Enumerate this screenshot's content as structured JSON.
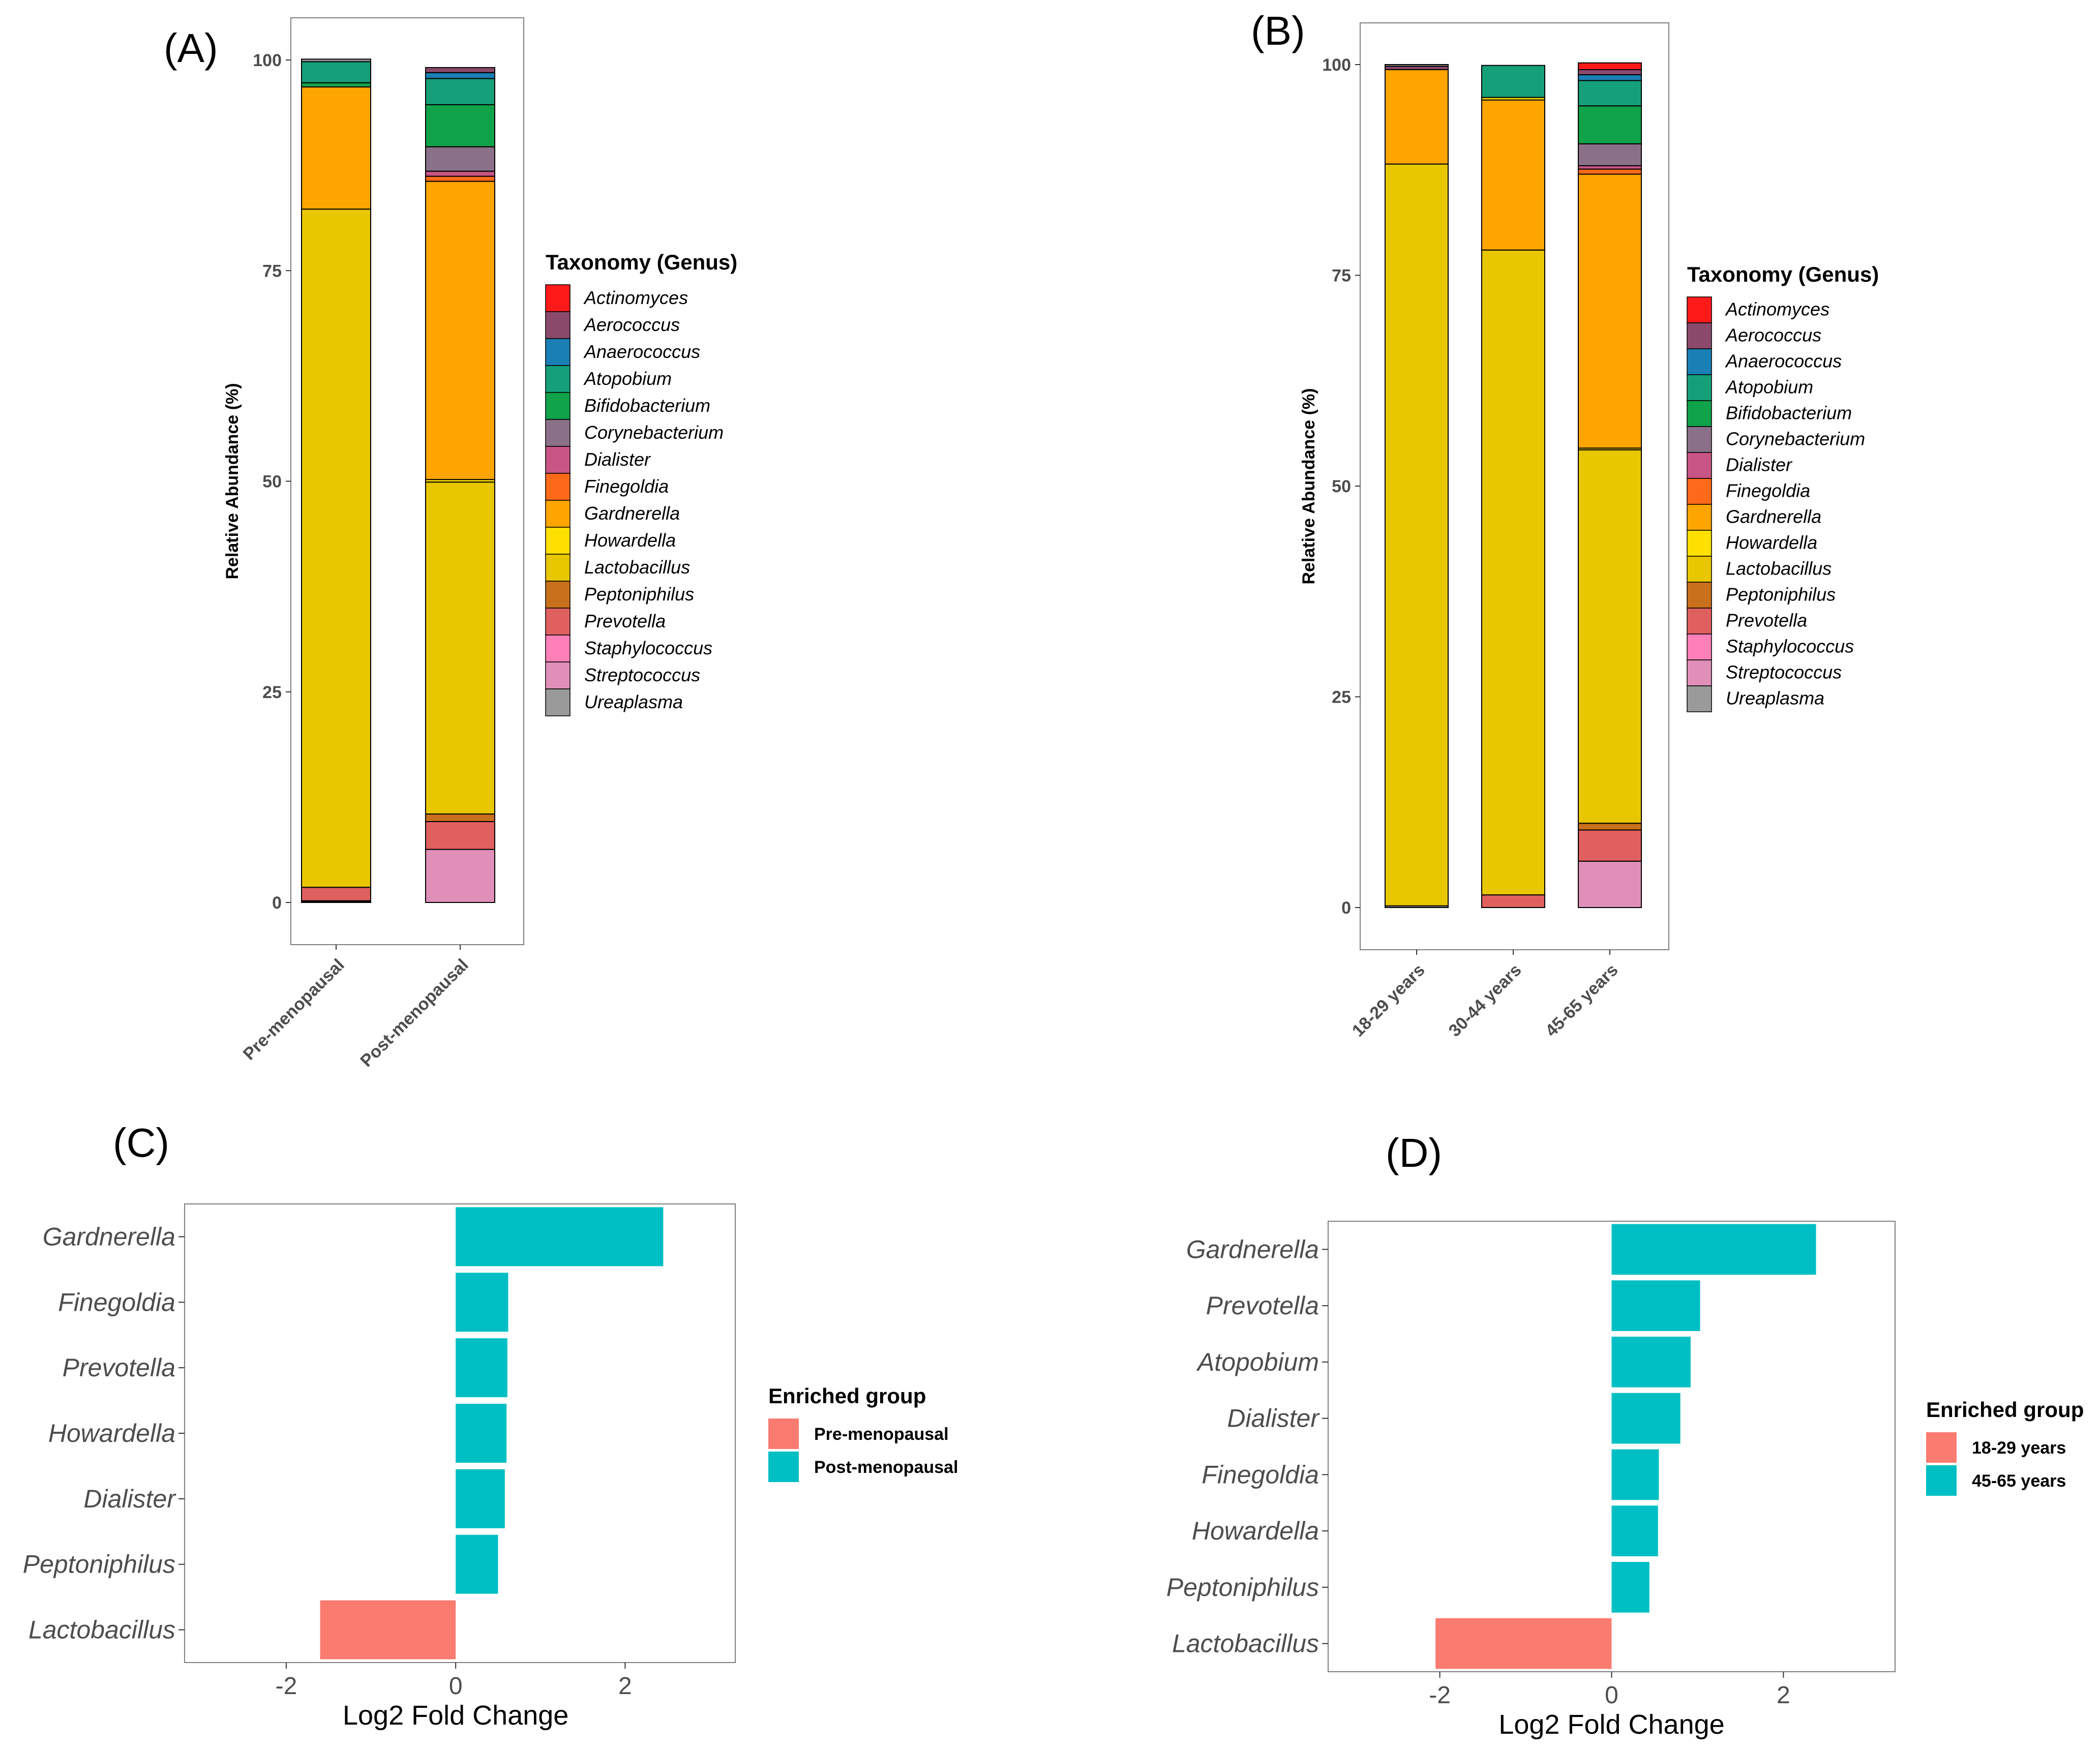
{
  "panels": {
    "a": "(A)",
    "b": "(B)",
    "c": "(C)",
    "d": "(D)"
  },
  "genus_colors": {
    "Actinomyces": "#ff1a1a",
    "Aerococcus": "#8b4a6b",
    "Anaerococcus": "#1a7fb4",
    "Atopobium": "#16a07a",
    "Bifidobacterium": "#10a34a",
    "Corynebacterium": "#8a7088",
    "Dialister": "#c85585",
    "Finegoldia": "#ff6a1a",
    "Gardnerella": "#ffa500",
    "Howardella": "#ffe000",
    "Lactobacillus": "#e8c600",
    "Peptoniphilus": "#c8701c",
    "Prevotella": "#e06060",
    "Staphylococcus": "#ff80b8",
    "Streptococcus": "#e090b8",
    "Ureaplasma": "#9a9a9a"
  },
  "chart_data": [
    {
      "id": "A",
      "type": "bar",
      "stacked": true,
      "ylabel": "Relative Abundance (%)",
      "ylim": [
        0,
        100
      ],
      "yticks": [
        "0",
        "25",
        "50",
        "75",
        "100"
      ],
      "categories": [
        "Pre-menopausal",
        "Post-menopausal"
      ],
      "legend_title": "Taxonomy (Genus)",
      "legend_items": [
        "Actinomyces",
        "Aerococcus",
        "Anaerococcus",
        "Atopobium",
        "Bifidobacterium",
        "Corynebacterium",
        "Dialister",
        "Finegoldia",
        "Gardnerella",
        "Howardella",
        "Lactobacillus",
        "Peptoniphilus",
        "Prevotella",
        "Staphylococcus",
        "Streptococcus",
        "Ureaplasma"
      ],
      "stacks": [
        [
          [
            "Ureaplasma",
            0.1
          ],
          [
            "Streptococcus",
            0.1
          ],
          [
            "Prevotella",
            1.6
          ],
          [
            "Lactobacillus",
            80.5
          ],
          [
            "Gardnerella",
            14.5
          ],
          [
            "Bifidobacterium",
            0.5
          ],
          [
            "Atopobium",
            2.5
          ],
          [
            "Ureaplasma",
            0.3
          ]
        ],
        [
          [
            "Streptococcus",
            6.3
          ],
          [
            "Prevotella",
            3.3
          ],
          [
            "Peptoniphilus",
            0.9
          ],
          [
            "Lactobacillus",
            39.4
          ],
          [
            "Howardella",
            0.3
          ],
          [
            "Gardnerella",
            35.4
          ],
          [
            "Finegoldia",
            0.6
          ],
          [
            "Dialister",
            0.6
          ],
          [
            "Corynebacterium",
            2.9
          ],
          [
            "Bifidobacterium",
            5.0
          ],
          [
            "Atopobium",
            3.1
          ],
          [
            "Anaerococcus",
            0.7
          ],
          [
            "Aerococcus",
            0.6
          ]
        ]
      ]
    },
    {
      "id": "B",
      "type": "bar",
      "stacked": true,
      "ylabel": "Relative Abundance (%)",
      "ylim": [
        0,
        100
      ],
      "yticks": [
        "0",
        "25",
        "50",
        "75",
        "100"
      ],
      "categories": [
        "18-29 years",
        "30-44 years",
        "45-65 years"
      ],
      "legend_title": "Taxonomy (Genus)",
      "legend_items": [
        "Actinomyces",
        "Aerococcus",
        "Anaerococcus",
        "Atopobium",
        "Bifidobacterium",
        "Corynebacterium",
        "Dialister",
        "Finegoldia",
        "Gardnerella",
        "Howardella",
        "Lactobacillus",
        "Peptoniphilus",
        "Prevotella",
        "Staphylococcus",
        "Streptococcus",
        "Ureaplasma"
      ],
      "stacks": [
        [
          [
            "Ureaplasma",
            0.2
          ],
          [
            "Lactobacillus",
            88.0
          ],
          [
            "Gardnerella",
            11.2
          ],
          [
            "Aerococcus",
            0.4
          ],
          [
            "Ureaplasma",
            0.2
          ]
        ],
        [
          [
            "Prevotella",
            1.5
          ],
          [
            "Lactobacillus",
            76.5
          ],
          [
            "Gardnerella",
            17.8
          ],
          [
            "Howardella",
            0.3
          ],
          [
            "Atopobium",
            3.8
          ]
        ],
        [
          [
            "Streptococcus",
            5.5
          ],
          [
            "Prevotella",
            3.7
          ],
          [
            "Peptoniphilus",
            0.8
          ],
          [
            "Lactobacillus",
            44.3
          ],
          [
            "Howardella",
            0.2
          ],
          [
            "Gardnerella",
            32.5
          ],
          [
            "Finegoldia",
            0.6
          ],
          [
            "Dialister",
            0.4
          ],
          [
            "Corynebacterium",
            2.6
          ],
          [
            "Bifidobacterium",
            4.5
          ],
          [
            "Atopobium",
            3.0
          ],
          [
            "Anaerococcus",
            0.7
          ],
          [
            "Aerococcus",
            0.6
          ],
          [
            "Actinomyces",
            0.8
          ]
        ]
      ]
    },
    {
      "id": "C",
      "type": "bar",
      "orientation": "horizontal",
      "xlabel": "Log2 Fold Change",
      "xlim": [
        -3.2,
        3.3
      ],
      "xticks": [
        -2,
        0,
        2
      ],
      "categories": [
        "Gardnerella",
        "Finegoldia",
        "Prevotella",
        "Howardella",
        "Dialister",
        "Peptoniphilus",
        "Lactobacillus"
      ],
      "values": [
        2.45,
        0.62,
        0.61,
        0.6,
        0.58,
        0.5,
        -1.6
      ],
      "groups": [
        "Post-menopausal",
        "Post-menopausal",
        "Post-menopausal",
        "Post-menopausal",
        "Post-menopausal",
        "Post-menopausal",
        "Pre-menopausal"
      ],
      "legend_title": "Enriched group",
      "legend_items": [
        {
          "label": "Pre-menopausal",
          "color": "#fa7b70"
        },
        {
          "label": "Post-menopausal",
          "color": "#00bfc4"
        }
      ]
    },
    {
      "id": "D",
      "type": "bar",
      "orientation": "horizontal",
      "xlabel": "Log2 Fold Change",
      "xlim": [
        -3.3,
        3.3
      ],
      "xticks": [
        -2,
        0,
        2
      ],
      "categories": [
        "Gardnerella",
        "Prevotella",
        "Atopobium",
        "Dialister",
        "Finegoldia",
        "Howardella",
        "Peptoniphilus",
        "Lactobacillus"
      ],
      "values": [
        2.38,
        1.03,
        0.92,
        0.8,
        0.55,
        0.54,
        0.44,
        -2.05
      ],
      "groups": [
        "45-65 years",
        "45-65 years",
        "45-65 years",
        "45-65 years",
        "45-65 years",
        "45-65 years",
        "45-65 years",
        "18-29 years"
      ],
      "legend_title": "Enriched group",
      "legend_items": [
        {
          "label": "18-29 years",
          "color": "#fa7b70"
        },
        {
          "label": "45-65 years",
          "color": "#00bfc4"
        }
      ]
    }
  ]
}
